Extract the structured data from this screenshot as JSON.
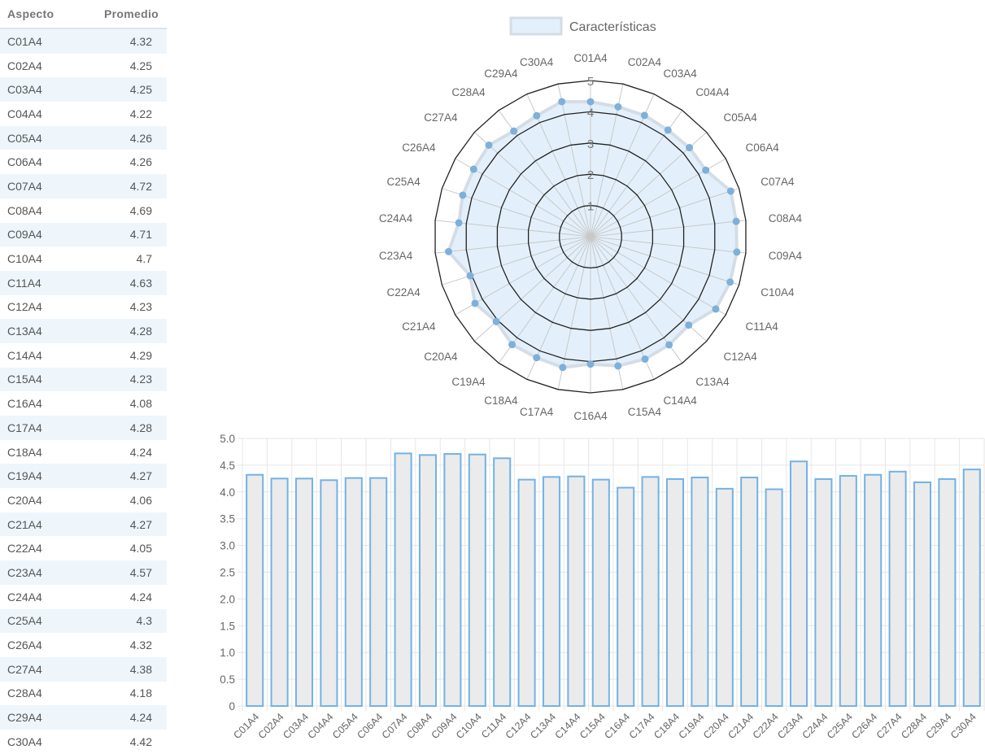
{
  "table": {
    "headers": [
      "Aspecto",
      "Promedio"
    ],
    "rows": [
      [
        "C01A4",
        "4.32"
      ],
      [
        "C02A4",
        "4.25"
      ],
      [
        "C03A4",
        "4.25"
      ],
      [
        "C04A4",
        "4.22"
      ],
      [
        "C05A4",
        "4.26"
      ],
      [
        "C06A4",
        "4.26"
      ],
      [
        "C07A4",
        "4.72"
      ],
      [
        "C08A4",
        "4.69"
      ],
      [
        "C09A4",
        "4.71"
      ],
      [
        "C10A4",
        "4.7"
      ],
      [
        "C11A4",
        "4.63"
      ],
      [
        "C12A4",
        "4.23"
      ],
      [
        "C13A4",
        "4.28"
      ],
      [
        "C14A4",
        "4.29"
      ],
      [
        "C15A4",
        "4.23"
      ],
      [
        "C16A4",
        "4.08"
      ],
      [
        "C17A4",
        "4.28"
      ],
      [
        "C18A4",
        "4.24"
      ],
      [
        "C19A4",
        "4.27"
      ],
      [
        "C20A4",
        "4.06"
      ],
      [
        "C21A4",
        "4.27"
      ],
      [
        "C22A4",
        "4.05"
      ],
      [
        "C23A4",
        "4.57"
      ],
      [
        "C24A4",
        "4.24"
      ],
      [
        "C25A4",
        "4.3"
      ],
      [
        "C26A4",
        "4.32"
      ],
      [
        "C27A4",
        "4.38"
      ],
      [
        "C28A4",
        "4.18"
      ],
      [
        "C29A4",
        "4.24"
      ],
      [
        "C30A4",
        "4.42"
      ]
    ]
  },
  "chart_data": [
    {
      "type": "radar",
      "legend": "Características",
      "legend_position": "top",
      "categories": [
        "C01A4",
        "C02A4",
        "C03A4",
        "C04A4",
        "C05A4",
        "C06A4",
        "C07A4",
        "C08A4",
        "C09A4",
        "C10A4",
        "C11A4",
        "C12A4",
        "C13A4",
        "C14A4",
        "C15A4",
        "C16A4",
        "C17A4",
        "C18A4",
        "C19A4",
        "C20A4",
        "C21A4",
        "C22A4",
        "C23A4",
        "C24A4",
        "C25A4",
        "C26A4",
        "C27A4",
        "C28A4",
        "C29A4",
        "C30A4"
      ],
      "values": [
        4.32,
        4.25,
        4.25,
        4.22,
        4.26,
        4.26,
        4.72,
        4.69,
        4.71,
        4.7,
        4.63,
        4.23,
        4.28,
        4.29,
        4.23,
        4.08,
        4.28,
        4.24,
        4.27,
        4.06,
        4.27,
        4.05,
        4.57,
        4.24,
        4.3,
        4.32,
        4.38,
        4.18,
        4.24,
        4.42
      ],
      "rlim": [
        0,
        5
      ],
      "ticks": [
        "1",
        "2",
        "3",
        "4",
        "5"
      ],
      "colors": {
        "fill": "#e3f0fb",
        "line": "#d4dde6",
        "point": "#7eb0d9",
        "grid": "#222222",
        "spoke": "#c8c8c8"
      }
    },
    {
      "type": "bar",
      "categories": [
        "C01A4",
        "C02A4",
        "C03A4",
        "C04A4",
        "C05A4",
        "C06A4",
        "C07A4",
        "C08A4",
        "C09A4",
        "C10A4",
        "C11A4",
        "C12A4",
        "C13A4",
        "C14A4",
        "C15A4",
        "C16A4",
        "C17A4",
        "C18A4",
        "C19A4",
        "C20A4",
        "C21A4",
        "C22A4",
        "C23A4",
        "C24A4",
        "C25A4",
        "C26A4",
        "C27A4",
        "C28A4",
        "C29A4",
        "C30A4"
      ],
      "values": [
        4.32,
        4.25,
        4.25,
        4.22,
        4.26,
        4.26,
        4.72,
        4.69,
        4.71,
        4.7,
        4.63,
        4.23,
        4.28,
        4.29,
        4.23,
        4.08,
        4.28,
        4.24,
        4.27,
        4.06,
        4.27,
        4.05,
        4.57,
        4.24,
        4.3,
        4.32,
        4.38,
        4.18,
        4.24,
        4.42
      ],
      "ylim": [
        0,
        5
      ],
      "yticks": [
        "0",
        "0.5",
        "1.0",
        "1.5",
        "2.0",
        "2.5",
        "3.0",
        "3.5",
        "4.0",
        "4.5",
        "5.0"
      ],
      "grid": true,
      "colors": {
        "fill": "#ebebeb",
        "border": "#72b2e6",
        "grid": "#e6e6e6"
      }
    }
  ]
}
